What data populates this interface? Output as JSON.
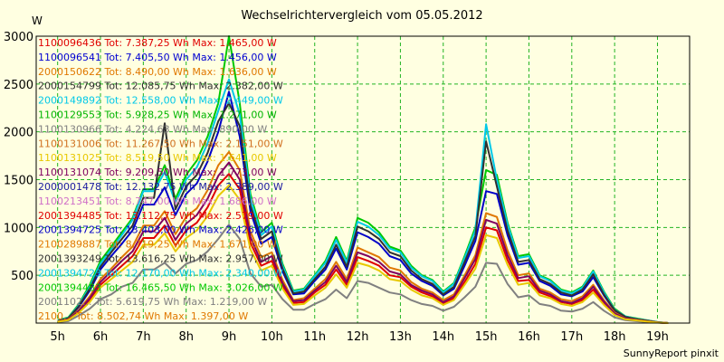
{
  "chart_data": {
    "type": "line",
    "title": "Wechselrichtervergleich vom 05.05.2012",
    "ylabel": "W",
    "credit": "SunnyReport pinxit",
    "xlim": [
      4.5,
      19.75
    ],
    "ylim": [
      0,
      3000
    ],
    "x_ticks": [
      {
        "x": 5,
        "label": "5h"
      },
      {
        "x": 6,
        "label": "6h"
      },
      {
        "x": 7,
        "label": "7h"
      },
      {
        "x": 8,
        "label": "8h"
      },
      {
        "x": 9,
        "label": "9h"
      },
      {
        "x": 10,
        "label": "10h"
      },
      {
        "x": 11,
        "label": "11h"
      },
      {
        "x": 12,
        "label": "12h"
      },
      {
        "x": 13,
        "label": "13h"
      },
      {
        "x": 14,
        "label": "14h"
      },
      {
        "x": 15,
        "label": "15h"
      },
      {
        "x": 16,
        "label": "16h"
      },
      {
        "x": 17,
        "label": "17h"
      },
      {
        "x": 18,
        "label": "18h"
      },
      {
        "x": 19,
        "label": "19h"
      }
    ],
    "y_ticks": [
      {
        "y": 500,
        "label": "500"
      },
      {
        "y": 1000,
        "label": "1000"
      },
      {
        "y": 1500,
        "label": "1500"
      },
      {
        "y": 2000,
        "label": "2000"
      },
      {
        "y": 2500,
        "label": "2500"
      },
      {
        "y": 3000,
        "label": "3000"
      }
    ],
    "grid": true,
    "legend_position": "top-left",
    "legend": [
      {
        "text": "1100096436 Tot: 7.387,25 Wh Max: 1.465,00 W",
        "color": "#e00000"
      },
      {
        "text": "1100096541 Tot: 7.405,50 Wh Max: 1.456,00 W",
        "color": "#0000d0"
      },
      {
        "text": "2000150622 Tot: 8.490,00 Wh Max: 1.636,00 W",
        "color": "#e07800"
      },
      {
        "text": "2000154799 Tot: 12.085,75 Wh Max: 2.382,00 W",
        "color": "#303030"
      },
      {
        "text": "2000149892 Tot: 12.558,00 Wh Max: 2.449,00 W",
        "color": "#00c8e8"
      },
      {
        "text": "1100129553 Tot: 5.928,25 Wh Max: 1.271,00 W",
        "color": "#00b400"
      },
      {
        "text": "1100130966 Tot: 4.224,63 Wh Max: 890,00 W",
        "color": "#808080"
      },
      {
        "text": "1100131006 Tot: 11.267,50 Wh Max: 2.151,00 W",
        "color": "#d07020"
      },
      {
        "text": "1100131025 Tot: 8.519,50 Wh Max: 1.641,00 W",
        "color": "#e8c800"
      },
      {
        "text": "1100131074 Tot: 9.209,50 Wh Max: 1.773,00 W",
        "color": "#800060"
      },
      {
        "text": "2000001478 Tot: 12.132,75 Wh Max: 2.389,00 W",
        "color": "#1a1aa0"
      },
      {
        "text": "1100213451 Tot: 8.747,00 Wh Max: 1.686,00 W",
        "color": "#d070c8"
      },
      {
        "text": "2001394485 Tot: 13.112,75 Wh Max: 2.579,00 W",
        "color": "#e00000"
      },
      {
        "text": "2001394725 Tot: 13.403,00 Wh Max: 2.426,00 W",
        "color": "#0000c8"
      },
      {
        "text": "2100289887 Tot: 8.719,25 Wh Max: 1.671,00 W",
        "color": "#e07800"
      },
      {
        "text": "2001393249 Tot: 13.616,25 Wh Max: 2.957,00 W",
        "color": "#303030"
      },
      {
        "text": "2001394723 Tot: 12.170,00 Wh Max: 2.340,00 W",
        "color": "#00c8e8"
      },
      {
        "text": "2001394483 Tot: 16.465,50 Wh Max: 3.026,00 W",
        "color": "#00c800"
      },
      {
        "text": "2001102... Tot: 5.619,75 Wh Max: 1.219,00 W",
        "color": "#808080"
      },
      {
        "text": "2100... Tot: 8.502,74 Wh Max: 1.397,00 W",
        "color": "#e07800"
      }
    ],
    "x": [
      5.0,
      5.25,
      5.5,
      5.75,
      6.0,
      6.25,
      6.5,
      6.75,
      7.0,
      7.25,
      7.5,
      7.75,
      8.0,
      8.25,
      8.5,
      8.75,
      9.0,
      9.25,
      9.5,
      9.75,
      10.0,
      10.25,
      10.5,
      10.75,
      11.0,
      11.25,
      11.5,
      11.75,
      12.0,
      12.25,
      12.5,
      12.75,
      13.0,
      13.25,
      13.5,
      13.75,
      14.0,
      14.25,
      14.5,
      14.75,
      15.0,
      15.25,
      15.5,
      15.75,
      16.0,
      16.25,
      16.5,
      16.75,
      17.0,
      17.25,
      17.5,
      17.75,
      18.0,
      18.25,
      18.5,
      18.75,
      19.0,
      19.25
    ],
    "series": [
      {
        "color": "#808080",
        "values": [
          10,
          20,
          80,
          150,
          250,
          300,
          380,
          420,
          560,
          560,
          630,
          520,
          620,
          660,
          750,
          880,
          1030,
          880,
          520,
          380,
          400,
          250,
          140,
          140,
          200,
          250,
          350,
          260,
          440,
          420,
          370,
          320,
          300,
          240,
          200,
          180,
          130,
          170,
          270,
          380,
          630,
          620,
          410,
          270,
          290,
          200,
          180,
          130,
          120,
          150,
          220,
          130,
          60,
          30,
          20,
          10,
          5,
          0
        ]
      },
      {
        "color": "#00c800",
        "values": [
          30,
          60,
          200,
          400,
          650,
          800,
          950,
          1100,
          1400,
          1400,
          1650,
          1300,
          1550,
          1700,
          1950,
          2300,
          3000,
          2300,
          1350,
          950,
          1050,
          620,
          340,
          360,
          500,
          650,
          900,
          650,
          1100,
          1050,
          950,
          800,
          760,
          600,
          500,
          450,
          330,
          420,
          700,
          1000,
          1600,
          1550,
          1050,
          700,
          720,
          500,
          450,
          350,
          320,
          380,
          550,
          330,
          150,
          70,
          50,
          30,
          10,
          0
        ]
      },
      {
        "color": "#00c8e8",
        "values": [
          25,
          55,
          190,
          380,
          620,
          770,
          920,
          1080,
          1380,
          1380,
          1580,
          1260,
          1500,
          1630,
          1880,
          2220,
          2550,
          2180,
          1300,
          920,
          1010,
          600,
          330,
          350,
          490,
          630,
          870,
          630,
          1060,
          1010,
          920,
          780,
          740,
          580,
          490,
          440,
          320,
          410,
          680,
          970,
          2080,
          1500,
          1030,
          680,
          700,
          490,
          440,
          340,
          310,
          370,
          540,
          320,
          140,
          70,
          45,
          28,
          10,
          0
        ]
      },
      {
        "color": "#0000c8",
        "values": [
          20,
          45,
          170,
          340,
          560,
          700,
          830,
          970,
          1240,
          1240,
          1420,
          1130,
          1350,
          1460,
          1690,
          2000,
          2420,
          1950,
          1170,
          830,
          900,
          540,
          300,
          310,
          440,
          560,
          780,
          560,
          950,
          900,
          830,
          700,
          660,
          520,
          440,
          390,
          290,
          360,
          600,
          860,
          1380,
          1350,
          920,
          610,
          630,
          440,
          390,
          300,
          280,
          330,
          480,
          290,
          130,
          60,
          40,
          25,
          8,
          0
        ]
      },
      {
        "color": "#303030",
        "values": [
          22,
          50,
          180,
          360,
          590,
          740,
          880,
          1020,
          1310,
          1310,
          2090,
          1190,
          1430,
          1550,
          1780,
          2110,
          2300,
          2060,
          1230,
          880,
          960,
          570,
          310,
          330,
          460,
          590,
          820,
          590,
          1010,
          960,
          880,
          740,
          700,
          550,
          460,
          410,
          300,
          380,
          640,
          910,
          1900,
          1430,
          970,
          640,
          660,
          460,
          410,
          320,
          290,
          350,
          510,
          300,
          135,
          65,
          42,
          26,
          9,
          0
        ]
      },
      {
        "color": "#e00000",
        "values": [
          15,
          35,
          120,
          240,
          400,
          500,
          600,
          700,
          890,
          890,
          1020,
          810,
          970,
          1050,
          1210,
          1440,
          1560,
          1400,
          840,
          600,
          650,
          390,
          210,
          220,
          320,
          400,
          560,
          400,
          690,
          650,
          600,
          500,
          480,
          380,
          320,
          280,
          210,
          260,
          430,
          620,
          1000,
          970,
          660,
          440,
          450,
          320,
          280,
          220,
          200,
          240,
          350,
          210,
          95,
          45,
          30,
          18,
          6,
          0
        ]
      },
      {
        "color": "#e07800",
        "values": [
          18,
          40,
          140,
          280,
          460,
          570,
          690,
          800,
          1020,
          1020,
          1170,
          930,
          1110,
          1200,
          1390,
          1650,
          1790,
          1600,
          960,
          690,
          740,
          450,
          240,
          260,
          360,
          460,
          640,
          460,
          790,
          740,
          690,
          580,
          550,
          430,
          360,
          320,
          240,
          300,
          500,
          710,
          1150,
          1110,
          760,
          500,
          520,
          360,
          320,
          250,
          230,
          280,
          400,
          240,
          110,
          50,
          35,
          20,
          7,
          0
        ]
      },
      {
        "color": "#800060",
        "values": [
          16,
          38,
          130,
          260,
          430,
          540,
          650,
          750,
          960,
          960,
          1100,
          870,
          1040,
          1130,
          1300,
          1540,
          1680,
          1500,
          900,
          640,
          700,
          420,
          230,
          240,
          340,
          430,
          600,
          430,
          740,
          700,
          640,
          540,
          510,
          400,
          340,
          300,
          220,
          280,
          470,
          670,
          1080,
          1040,
          710,
          470,
          490,
          340,
          300,
          230,
          210,
          260,
          380,
          225,
          100,
          48,
          32,
          19,
          6,
          0
        ]
      },
      {
        "color": "#e8c800",
        "values": [
          14,
          32,
          110,
          220,
          370,
          460,
          550,
          640,
          820,
          820,
          940,
          750,
          890,
          970,
          1120,
          1330,
          1440,
          1290,
          770,
          550,
          600,
          360,
          190,
          200,
          290,
          370,
          510,
          370,
          630,
          600,
          550,
          460,
          440,
          350,
          290,
          260,
          190,
          240,
          400,
          570,
          920,
          890,
          610,
          400,
          420,
          290,
          260,
          200,
          180,
          220,
          320,
          190,
          85,
          40,
          28,
          16,
          5,
          0
        ]
      }
    ]
  }
}
